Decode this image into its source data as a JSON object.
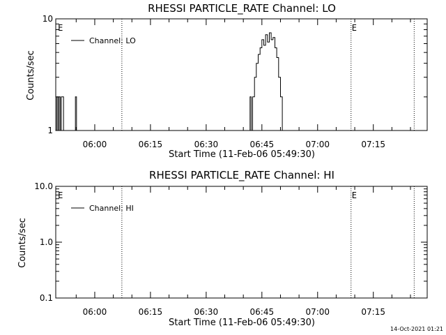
{
  "chart_data": [
    {
      "type": "line",
      "title": "RHESSI PARTICLE_RATE Channel: LO",
      "xlabel": "Start Time (11-Feb-06 05:49:30)",
      "ylabel": "Counts/sec",
      "y_scale": "log",
      "ylim": [
        1,
        10
      ],
      "y_ticks": [
        1,
        10
      ],
      "y_tick_labels": [
        "1",
        "10"
      ],
      "xlim_minutes": [
        0,
        100
      ],
      "x_ticks_minutes": [
        10.5,
        25.5,
        40.5,
        55.5,
        70.5,
        85.5
      ],
      "x_tick_labels": [
        "06:00",
        "06:15",
        "06:30",
        "06:45",
        "07:00",
        "07:15"
      ],
      "legend": {
        "label": "Channel: LO",
        "position": "top-left"
      },
      "markers": [
        {
          "label": "E",
          "x_minutes": 0.4,
          "line": false
        },
        {
          "label": "",
          "x_minutes": 17.8,
          "line": true
        },
        {
          "label": "E",
          "x_minutes": 79.5,
          "line": true
        },
        {
          "label": "",
          "x_minutes": 96.5,
          "line": true
        }
      ],
      "series": [
        {
          "name": "Channel: LO",
          "x": [
            0.0,
            0.3,
            0.6,
            0.9,
            1.2,
            1.5,
            1.8,
            2.1,
            2.4,
            5.0,
            5.3,
            5.6,
            52.0,
            52.3,
            52.6,
            53.0,
            53.5,
            54.0,
            54.5,
            55.0,
            55.5,
            56.0,
            56.5,
            57.0,
            57.5,
            58.0,
            58.5,
            59.0,
            59.5,
            60.0,
            60.5,
            61.0
          ],
          "y": [
            1,
            2,
            1,
            2,
            1,
            2,
            2,
            1,
            1,
            1,
            2,
            1,
            1,
            2,
            1,
            2,
            3,
            4,
            4.8,
            5.5,
            6.5,
            5.8,
            7.2,
            6.2,
            7.5,
            6.5,
            6.8,
            5.5,
            4.5,
            3.0,
            2.0,
            1
          ]
        }
      ]
    },
    {
      "type": "line",
      "title": "RHESSI PARTICLE_RATE Channel: HI",
      "xlabel": "Start Time (11-Feb-06 05:49:30)",
      "ylabel": "Counts/sec",
      "y_scale": "log",
      "ylim": [
        0.1,
        10
      ],
      "y_ticks": [
        0.1,
        1,
        10
      ],
      "y_tick_labels": [
        "0.1",
        "1.0",
        "10.0"
      ],
      "xlim_minutes": [
        0,
        100
      ],
      "x_ticks_minutes": [
        10.5,
        25.5,
        40.5,
        55.5,
        70.5,
        85.5
      ],
      "x_tick_labels": [
        "06:00",
        "06:15",
        "06:30",
        "06:45",
        "07:00",
        "07:15"
      ],
      "legend": {
        "label": "Channel: HI",
        "position": "top-left"
      },
      "markers": [
        {
          "label": "E",
          "x_minutes": 0.4,
          "line": false
        },
        {
          "label": "",
          "x_minutes": 17.8,
          "line": true
        },
        {
          "label": "E",
          "x_minutes": 79.5,
          "line": true
        },
        {
          "label": "",
          "x_minutes": 96.5,
          "line": true
        }
      ],
      "series": [
        {
          "name": "Channel: HI",
          "x": [],
          "y": []
        }
      ]
    }
  ],
  "footer": {
    "timestamp": "14-Oct-2021 01:21"
  }
}
